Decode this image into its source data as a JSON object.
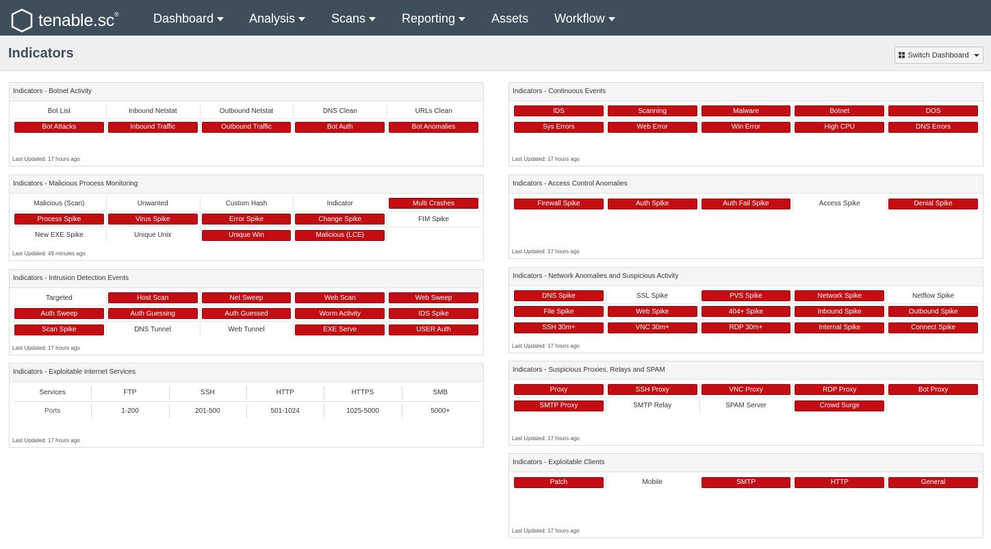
{
  "app": {
    "brand": "tenable.sc",
    "trademark": "®"
  },
  "nav": {
    "items": [
      {
        "label": "Dashboard",
        "dropdown": true
      },
      {
        "label": "Analysis",
        "dropdown": true
      },
      {
        "label": "Scans",
        "dropdown": true
      },
      {
        "label": "Reporting",
        "dropdown": true
      },
      {
        "label": "Assets",
        "dropdown": false
      },
      {
        "label": "Workflow",
        "dropdown": true
      }
    ]
  },
  "page": {
    "title": "Indicators",
    "switch_label": "Switch Dashboard"
  },
  "colors": {
    "nav_bg": "#3f4e5b",
    "alert_red": "#c40d12",
    "panel_header": "#f5f5f5"
  },
  "panels": {
    "botnet": {
      "title": "Indicators - Botnet Activity",
      "updated": "Last Updated: 17 hours ago",
      "rows": [
        [
          {
            "t": "Bot List",
            "a": false
          },
          {
            "t": "Inbound Netstat",
            "a": false
          },
          {
            "t": "Outbound Netstat",
            "a": false
          },
          {
            "t": "DNS Clean",
            "a": false
          },
          {
            "t": "URLs Clean",
            "a": false
          }
        ],
        [
          {
            "t": "Bot Attacks",
            "a": true
          },
          {
            "t": "Inbound Traffic",
            "a": true
          },
          {
            "t": "Outbound Traffic",
            "a": true
          },
          {
            "t": "Bot Auth",
            "a": true
          },
          {
            "t": "Bot Anomalies",
            "a": true
          }
        ]
      ]
    },
    "malicious": {
      "title": "Indicators - Malicious Process Monitoring",
      "updated": "Last Updated: 49 minutes ago",
      "rows": [
        [
          {
            "t": "Malicious (Scan)",
            "a": false
          },
          {
            "t": "Unwanted",
            "a": false
          },
          {
            "t": "Custom Hash",
            "a": false
          },
          {
            "t": "Indicator",
            "a": false
          },
          {
            "t": "Multi Crashes",
            "a": true
          }
        ],
        [
          {
            "t": "Process Spike",
            "a": true
          },
          {
            "t": "Virus Spike",
            "a": true
          },
          {
            "t": "Error Spike",
            "a": true
          },
          {
            "t": "Change Spike",
            "a": true
          },
          {
            "t": "FIM Spike",
            "a": false
          }
        ],
        [
          {
            "t": "New EXE Spike",
            "a": false
          },
          {
            "t": "Unique Unix",
            "a": false
          },
          {
            "t": "Unique Win",
            "a": true
          },
          {
            "t": "Malicious (LCE)",
            "a": true
          },
          {
            "t": "",
            "a": false
          }
        ]
      ]
    },
    "intrusion": {
      "title": "Indicators - Intrusion Detection Events",
      "updated": "Last Updated: 17 hours ago",
      "rows": [
        [
          {
            "t": "Targeted",
            "a": false
          },
          {
            "t": "Host Scan",
            "a": true
          },
          {
            "t": "Net Sweep",
            "a": true
          },
          {
            "t": "Web Scan",
            "a": true
          },
          {
            "t": "Web Sweep",
            "a": true
          }
        ],
        [
          {
            "t": "Auth Sweep",
            "a": true
          },
          {
            "t": "Auth Guessing",
            "a": true
          },
          {
            "t": "Auth Guessed",
            "a": true
          },
          {
            "t": "Worm Activity",
            "a": true
          },
          {
            "t": "IDS Spike",
            "a": true
          }
        ],
        [
          {
            "t": "Scan Spike",
            "a": true
          },
          {
            "t": "DNS Tunnel",
            "a": false
          },
          {
            "t": "Web Tunnel",
            "a": false
          },
          {
            "t": "EXE Serve",
            "a": true
          },
          {
            "t": "USER Auth",
            "a": true
          }
        ]
      ]
    },
    "exploitable_services": {
      "title": "Indicators - Exploitable Internet Services",
      "updated": "Last Updated: 17 hours ago",
      "header": [
        "Services",
        "FTP",
        "SSH",
        "HTTP",
        "HTTPS",
        "SMB"
      ],
      "values": [
        "Ports",
        "1-200",
        "201-500",
        "501-1024",
        "1025-5000",
        "5000+"
      ]
    },
    "continuous": {
      "title": "Indicators - Continuous Events",
      "updated": "Last Updated: 17 hours ago",
      "rows": [
        [
          {
            "t": "IDS",
            "a": true
          },
          {
            "t": "Scanning",
            "a": true
          },
          {
            "t": "Malware",
            "a": true
          },
          {
            "t": "Botnet",
            "a": true
          },
          {
            "t": "DOS",
            "a": true
          }
        ],
        [
          {
            "t": "Sys Errors",
            "a": true
          },
          {
            "t": "Web Error",
            "a": true
          },
          {
            "t": "Win Error",
            "a": true
          },
          {
            "t": "High CPU",
            "a": true
          },
          {
            "t": "DNS Errors",
            "a": true
          }
        ]
      ]
    },
    "access": {
      "title": "Indicators - Access Control Anomalies",
      "updated": "Last Updated: 17 hours ago",
      "rows": [
        [
          {
            "t": "Firewall Spike",
            "a": true
          },
          {
            "t": "Auth Spike",
            "a": true
          },
          {
            "t": "Auth Fail Spike",
            "a": true
          },
          {
            "t": "Access Spike",
            "a": false
          },
          {
            "t": "Denial Spike",
            "a": true
          }
        ]
      ]
    },
    "network": {
      "title": "Indicators - Network Anomalies and Suspicious Activity",
      "updated": "Last Updated: 17 hours ago",
      "rows": [
        [
          {
            "t": "DNS Spike",
            "a": true
          },
          {
            "t": "SSL Spike",
            "a": false
          },
          {
            "t": "PVS Spike",
            "a": true
          },
          {
            "t": "Network Spike",
            "a": true
          },
          {
            "t": "Netflow Spike",
            "a": false
          }
        ],
        [
          {
            "t": "File Spike",
            "a": true
          },
          {
            "t": "Web Spike",
            "a": true
          },
          {
            "t": "404+ Spike",
            "a": true
          },
          {
            "t": "Inbound Spike",
            "a": true
          },
          {
            "t": "Outbound Spike",
            "a": true
          }
        ],
        [
          {
            "t": "SSH 30m+",
            "a": true
          },
          {
            "t": "VNC 30m+",
            "a": true
          },
          {
            "t": "RDP 30m+",
            "a": true
          },
          {
            "t": "Internal Spike",
            "a": true
          },
          {
            "t": "Connect Spike",
            "a": true
          }
        ]
      ]
    },
    "proxies": {
      "title": "Indicators - Suspicious Proxies, Relays and SPAM",
      "updated": "Last Updated: 17 hours ago",
      "rows": [
        [
          {
            "t": "Proxy",
            "a": true
          },
          {
            "t": "SSH Proxy",
            "a": true
          },
          {
            "t": "VNC Proxy",
            "a": true
          },
          {
            "t": "RDP Proxy",
            "a": true
          },
          {
            "t": "Bot Proxy",
            "a": true
          }
        ],
        [
          {
            "t": "SMTP Proxy",
            "a": true
          },
          {
            "t": "SMTP Relay",
            "a": false
          },
          {
            "t": "SPAM Server",
            "a": false
          },
          {
            "t": "Crowd Surge",
            "a": true
          },
          {
            "t": "",
            "a": false
          }
        ]
      ]
    },
    "clients": {
      "title": "Indicators - Exploitable Clients",
      "updated": "Last Updated: 17 hours ago",
      "rows": [
        [
          {
            "t": "Patch",
            "a": true
          },
          {
            "t": "Mobile",
            "a": false
          },
          {
            "t": "SMTP",
            "a": true
          },
          {
            "t": "HTTP",
            "a": true
          },
          {
            "t": "General",
            "a": true
          }
        ]
      ]
    }
  }
}
